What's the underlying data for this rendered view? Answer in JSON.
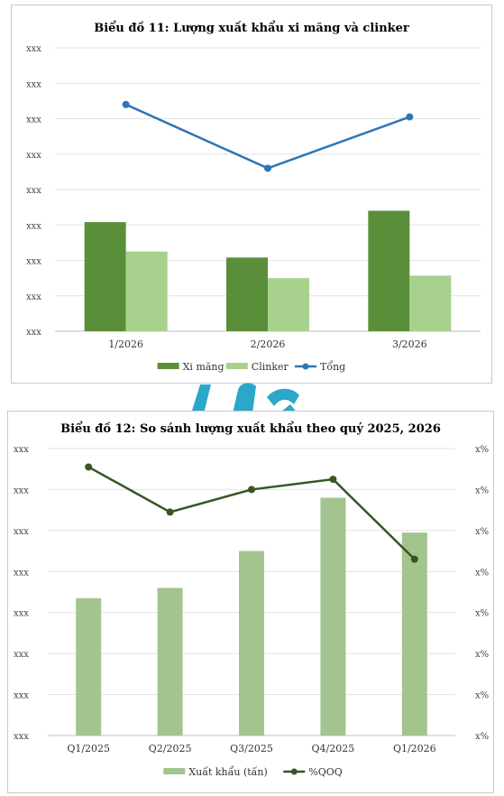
{
  "charts": [
    {
      "title": "Biểu đồ 11: Lượng xuất khẩu xi măng và clinker",
      "y_tick_label": "xxx",
      "legend": [
        {
          "label": "Xi măng",
          "kind": "bar",
          "color": "#5a8f3a"
        },
        {
          "label": "Clinker",
          "kind": "bar",
          "color": "#a9d18e"
        },
        {
          "label": "Tổng",
          "kind": "line",
          "color": "#2e75b6"
        }
      ]
    },
    {
      "title": "Biểu đồ 12: So sánh lượng xuất khẩu theo quý 2025, 2026",
      "y_tick_label": "xxx",
      "y2_tick_label": "x%",
      "legend": [
        {
          "label": "Xuất khẩu (tấn)",
          "kind": "bar",
          "color": "#a3c48f"
        },
        {
          "label": "%QOQ",
          "kind": "line",
          "color": "#375623"
        }
      ]
    }
  ],
  "chart_data": [
    {
      "type": "bar",
      "categories": [
        "1/2026",
        "2/2026",
        "3/2026"
      ],
      "ylim": [
        0,
        8
      ],
      "series": [
        {
          "name": "Xi măng",
          "type": "bar",
          "color": "#5a8f3a",
          "values": [
            3.08,
            2.08,
            3.4
          ]
        },
        {
          "name": "Clinker",
          "type": "bar",
          "color": "#a9d18e",
          "values": [
            2.25,
            1.5,
            1.57
          ]
        },
        {
          "name": "Tổng",
          "type": "line",
          "color": "#2e75b6",
          "values": [
            6.4,
            4.6,
            6.05
          ]
        }
      ],
      "y_tick_count": 9,
      "grid": true,
      "legend_position": "bottom"
    },
    {
      "type": "bar",
      "categories": [
        "Q1/2025",
        "Q2/2025",
        "Q3/2025",
        "Q4/2025",
        "Q1/2026"
      ],
      "ylim": [
        0,
        7
      ],
      "y2lim": [
        0,
        7
      ],
      "series": [
        {
          "name": "Xuất khẩu (tấn)",
          "type": "bar",
          "axis": "left",
          "color": "#a3c48f",
          "values": [
            3.35,
            3.6,
            4.5,
            5.8,
            4.95
          ]
        },
        {
          "name": "%QOQ",
          "type": "line",
          "axis": "right",
          "color": "#375623",
          "values": [
            6.55,
            5.45,
            6.0,
            6.25,
            4.3
          ]
        }
      ],
      "y_tick_count": 8,
      "grid": true,
      "legend_position": "bottom"
    }
  ]
}
